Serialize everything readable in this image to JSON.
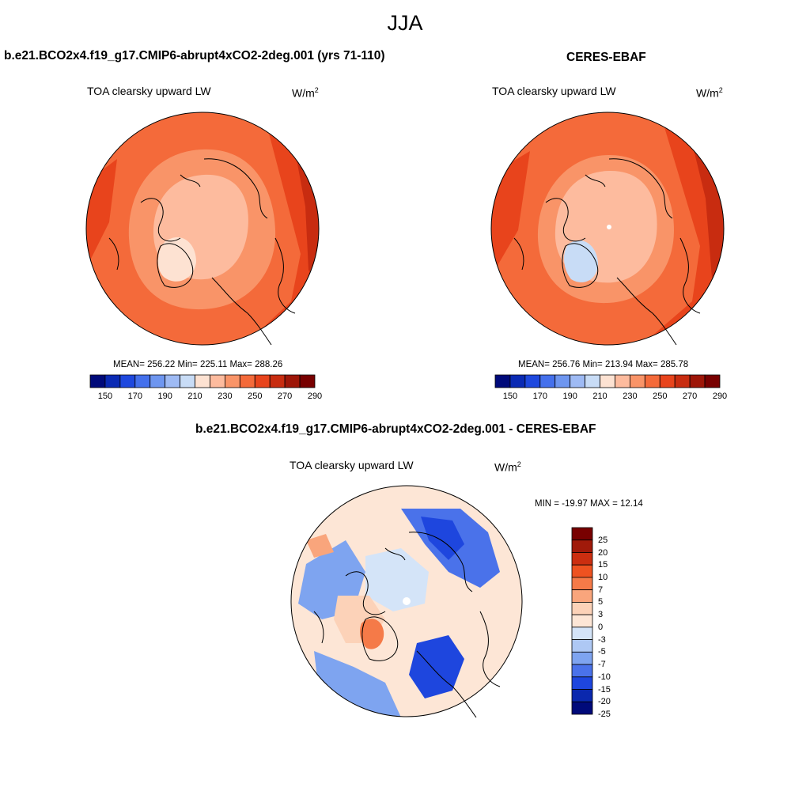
{
  "figure": {
    "season": "JJA"
  },
  "panels": {
    "model": {
      "title": "b.e21.BCO2x4.f19_g17.CMIP6-abrupt4xCO2-2deg.001 (yrs 71-110)",
      "variable": "TOA clearsky upward LW",
      "units_base": "W/m",
      "units_exp": "2",
      "stats": "MEAN= 256.22  Min= 225.11  Max= 288.26",
      "colorbar_ticks": [
        "150",
        "170",
        "190",
        "210",
        "230",
        "250",
        "270",
        "290"
      ]
    },
    "obs": {
      "title": "CERES-EBAF",
      "variable": "TOA clearsky upward LW",
      "units_base": "W/m",
      "units_exp": "2",
      "stats": "MEAN= 256.76  Min= 213.94  Max= 285.78",
      "colorbar_ticks": [
        "150",
        "170",
        "190",
        "210",
        "230",
        "250",
        "270",
        "290"
      ]
    },
    "diff": {
      "title": "b.e21.BCO2x4.f19_g17.CMIP6-abrupt4xCO2-2deg.001 - CERES-EBAF",
      "variable": "TOA clearsky upward LW",
      "units_base": "W/m",
      "units_exp": "2",
      "stats": "MIN = -19.97 MAX =  12.14",
      "colorbar_ticks": [
        "25",
        "20",
        "15",
        "10",
        "7",
        "5",
        "3",
        "0",
        "-3",
        "-5",
        "-7",
        "-10",
        "-15",
        "-20",
        "-25"
      ]
    }
  },
  "colors": {
    "abs_scale": [
      "#000a7a",
      "#0a2ab4",
      "#1e48de",
      "#4470ec",
      "#6e96f0",
      "#9ebaf4",
      "#c8dcf6",
      "#fde2d2",
      "#fdbb9e",
      "#f99468",
      "#f46a3a",
      "#e8441c",
      "#c82c10",
      "#9e1608",
      "#780000"
    ],
    "diff_scale": [
      "#780000",
      "#a01a0a",
      "#cc2e10",
      "#ee5220",
      "#f57a48",
      "#f9a57c",
      "#fcd2b8",
      "#fde6d6",
      "#d4e4f8",
      "#aec8f4",
      "#7ea4f0",
      "#4a72ea",
      "#1e46de",
      "#0a28ae",
      "#000a7a"
    ],
    "background": "#ffffff",
    "coastline": "#000000"
  }
}
